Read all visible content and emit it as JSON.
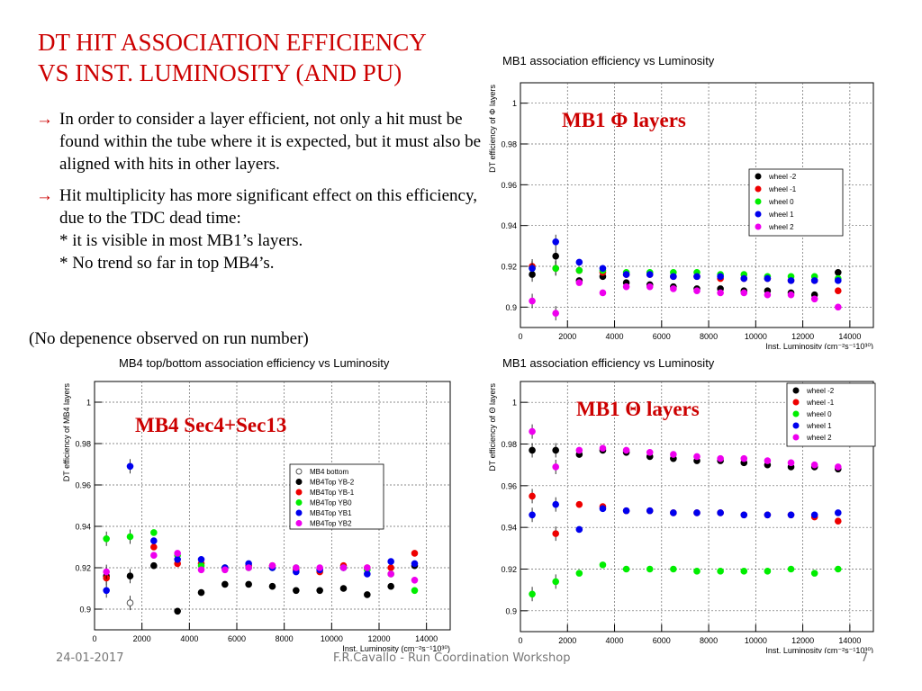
{
  "slide": {
    "title_line1": "DT HIT ASSOCIATION EFFICIENCY",
    "title_line2": "VS INST. LUMINOSITY (AND PU)",
    "bullet1": "In order to consider a layer efficient, not only a hit must be found within the tube where it is expected, but it must also be aligned with hits in other layers.",
    "bullet2": "Hit multiplicity has more significant effect on this efficiency, due to the TDC dead time:",
    "bullet2_sub1": "* it is visible in most MB1’s layers.",
    "bullet2_sub2": "* No trend so far in top MB4’s.",
    "note": "(No depenence observed on run number)",
    "arrow_icon": "→",
    "accent_color": "#cc0000"
  },
  "footer": {
    "date": "24-01-2017",
    "author": "F.R.Cavallo - Run Coordination Workshop",
    "page": "7"
  },
  "chart_data": [
    {
      "type": "scatter",
      "title": "MB1 association efficiency vs Luminosity",
      "overlay_label": "MB1 Φ layers",
      "xlabel": "Inst. Luminosity (cm⁻²s⁻¹10³⁰)",
      "ylabel": "DT efficiency of Φ layers",
      "xlim": [
        0,
        15000
      ],
      "ylim": [
        0.89,
        1.01
      ],
      "xticks": [
        "0",
        "2000",
        "4000",
        "6000",
        "8000",
        "10000",
        "12000",
        "14000"
      ],
      "yticks": [
        "0.9",
        "0.92",
        "0.94",
        "0.96",
        "0.98",
        "1"
      ],
      "grid": true,
      "legend_position": "right-middle",
      "x": [
        500,
        1500,
        2500,
        3500,
        4500,
        5500,
        6500,
        7500,
        8500,
        9500,
        10500,
        11500,
        12500,
        13500
      ],
      "series": [
        {
          "name": "wheel -2",
          "color": "#000000",
          "values": [
            0.916,
            0.925,
            0.913,
            0.915,
            0.912,
            0.911,
            0.91,
            0.909,
            0.909,
            0.908,
            0.908,
            0.907,
            0.906,
            0.917
          ]
        },
        {
          "name": "wheel -1",
          "color": "#ee0000",
          "values": [
            0.92,
            0.919,
            0.918,
            0.917,
            0.916,
            0.916,
            0.915,
            0.915,
            0.914,
            0.914,
            0.914,
            0.913,
            0.913,
            0.908
          ]
        },
        {
          "name": "wheel 0",
          "color": "#00ee00",
          "values": [
            0.919,
            0.919,
            0.918,
            0.918,
            0.917,
            0.917,
            0.917,
            0.917,
            0.916,
            0.916,
            0.915,
            0.915,
            0.915,
            0.914
          ]
        },
        {
          "name": "wheel 1",
          "color": "#0000ee",
          "values": [
            0.919,
            0.932,
            0.922,
            0.919,
            0.916,
            0.916,
            0.915,
            0.915,
            0.915,
            0.914,
            0.914,
            0.913,
            0.913,
            0.913
          ]
        },
        {
          "name": "wheel 2",
          "color": "#ee00ee",
          "values": [
            0.903,
            0.897,
            0.912,
            0.907,
            0.91,
            0.91,
            0.909,
            0.908,
            0.907,
            0.907,
            0.906,
            0.906,
            0.904,
            0.9
          ]
        }
      ]
    },
    {
      "type": "scatter",
      "title": "MB4 top/bottom association efficiency vs Luminosity",
      "overlay_label": "MB4 Sec4+Sec13",
      "xlabel": "Inst. Luminosity (cm⁻²s⁻¹10³⁰)",
      "ylabel": "DT efficiency of MB4 layers",
      "xlim": [
        0,
        15000
      ],
      "ylim": [
        0.89,
        1.01
      ],
      "xticks": [
        "0",
        "2000",
        "4000",
        "6000",
        "8000",
        "10000",
        "12000",
        "14000"
      ],
      "yticks": [
        "0.9",
        "0.92",
        "0.94",
        "0.96",
        "0.98",
        "1"
      ],
      "grid": true,
      "legend_position": "right-middle",
      "x": [
        500,
        1500,
        2500,
        3500,
        4500,
        5500,
        6500,
        7500,
        8500,
        9500,
        10500,
        11500,
        12500,
        13500
      ],
      "series": [
        {
          "name": "MB4 bottom",
          "color": "#000000",
          "open": true,
          "x": [
            1500
          ],
          "values": [
            0.903
          ]
        },
        {
          "name": "MB4Top YB-2",
          "color": "#000000",
          "values": [
            0.916,
            0.916,
            0.921,
            0.899,
            0.908,
            0.912,
            0.912,
            0.911,
            0.909,
            0.909,
            0.91,
            0.907,
            0.911,
            0.921
          ]
        },
        {
          "name": "MB4Top YB-1",
          "color": "#ee0000",
          "values": [
            0.915,
            null,
            0.93,
            0.922,
            0.922,
            0.92,
            0.921,
            0.921,
            0.919,
            0.918,
            0.921,
            0.92,
            0.92,
            0.927
          ]
        },
        {
          "name": "MB4Top YB0",
          "color": "#00ee00",
          "values": [
            0.934,
            0.935,
            0.937,
            0.926,
            0.921,
            0.92,
            0.92,
            0.92,
            0.92,
            0.919,
            0.92,
            0.919,
            0.917,
            0.909
          ]
        },
        {
          "name": "MB4Top YB1",
          "color": "#0000ee",
          "values": [
            0.909,
            0.969,
            0.933,
            0.924,
            0.924,
            0.92,
            0.922,
            0.92,
            0.918,
            0.919,
            0.92,
            0.917,
            0.923,
            0.922
          ]
        },
        {
          "name": "MB4Top YB2",
          "color": "#ee00ee",
          "values": [
            0.918,
            null,
            0.926,
            0.927,
            0.919,
            0.919,
            0.92,
            0.921,
            0.92,
            0.92,
            0.92,
            0.92,
            0.917,
            0.914
          ]
        }
      ]
    },
    {
      "type": "scatter",
      "title": "MB1 association efficiency vs Luminosity",
      "overlay_label": "MB1 Θ layers",
      "xlabel": "Inst. Luminosity (cm⁻²s⁻¹10³⁰)",
      "ylabel": "DT efficiency of Θ layers",
      "xlim": [
        0,
        15000
      ],
      "ylim": [
        0.89,
        1.01
      ],
      "xticks": [
        "0",
        "2000",
        "4000",
        "6000",
        "8000",
        "10000",
        "12000",
        "14000"
      ],
      "yticks": [
        "0.9",
        "0.92",
        "0.94",
        "0.96",
        "0.98",
        "1"
      ],
      "grid": true,
      "legend_position": "top-right",
      "x": [
        500,
        1500,
        2500,
        3500,
        4500,
        5500,
        6500,
        7500,
        8500,
        9500,
        10500,
        11500,
        12500,
        13500
      ],
      "series": [
        {
          "name": "wheel -2",
          "color": "#000000",
          "values": [
            0.977,
            0.977,
            0.975,
            0.977,
            0.976,
            0.974,
            0.973,
            0.972,
            0.972,
            0.971,
            0.97,
            0.969,
            0.969,
            0.968
          ]
        },
        {
          "name": "wheel -1",
          "color": "#ee0000",
          "values": [
            0.955,
            0.937,
            0.951,
            0.95,
            0.948,
            0.948,
            0.947,
            0.947,
            0.947,
            0.946,
            0.946,
            0.946,
            0.945,
            0.943
          ]
        },
        {
          "name": "wheel 0",
          "color": "#00ee00",
          "values": [
            0.908,
            0.914,
            0.918,
            0.922,
            0.92,
            0.92,
            0.92,
            0.919,
            0.919,
            0.919,
            0.919,
            0.92,
            0.918,
            0.92
          ]
        },
        {
          "name": "wheel 1",
          "color": "#0000ee",
          "values": [
            0.946,
            0.951,
            0.939,
            0.949,
            0.948,
            0.948,
            0.947,
            0.947,
            0.947,
            0.946,
            0.946,
            0.946,
            0.946,
            0.947
          ]
        },
        {
          "name": "wheel 2",
          "color": "#ee00ee",
          "values": [
            0.986,
            0.969,
            0.977,
            0.978,
            0.977,
            0.976,
            0.975,
            0.974,
            0.973,
            0.973,
            0.972,
            0.971,
            0.97,
            0.969
          ]
        }
      ]
    }
  ]
}
